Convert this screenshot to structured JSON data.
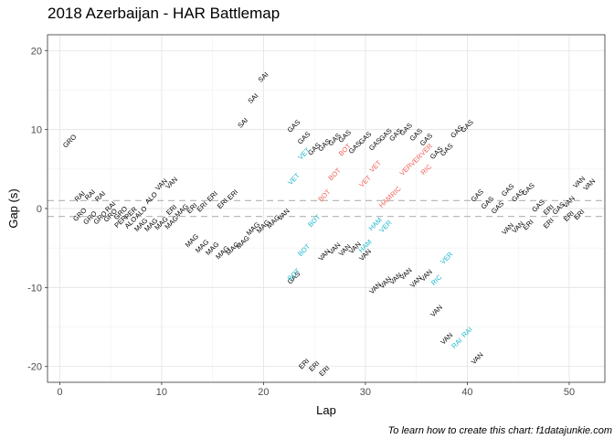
{
  "chart_data": {
    "type": "scatter",
    "title": "2018 Azerbaijan - HAR Battlemap",
    "xlabel": "Lap",
    "ylabel": "Gap (s)",
    "caption": "To learn how to create this chart: f1datajunkie.com",
    "xlim": [
      -1.2,
      53.5
    ],
    "ylim": [
      -22,
      22
    ],
    "x_ticks": [
      0,
      10,
      20,
      30,
      40,
      50
    ],
    "y_ticks": [
      -20,
      -10,
      0,
      10,
      20
    ],
    "reference_lines": [
      1,
      -1
    ],
    "grid": true,
    "label_rotation_deg": -45,
    "colors": {
      "default": "#000000",
      "cyan": "#1db8cc",
      "red": "#f16159"
    },
    "points": [
      {
        "x": 1,
        "y": 8.5,
        "label": "GRO",
        "color": "default"
      },
      {
        "x": 2,
        "y": 1.5,
        "label": "RAI",
        "color": "default"
      },
      {
        "x": 3,
        "y": 1.7,
        "label": "RAI",
        "color": "default"
      },
      {
        "x": 4,
        "y": 1.5,
        "label": "RAI",
        "color": "default"
      },
      {
        "x": 2,
        "y": -0.8,
        "label": "GRO",
        "color": "default"
      },
      {
        "x": 3,
        "y": -1.2,
        "label": "GRO",
        "color": "default"
      },
      {
        "x": 4,
        "y": -1.2,
        "label": "GRO",
        "color": "default"
      },
      {
        "x": 5,
        "y": 0.2,
        "label": "RAI",
        "color": "default"
      },
      {
        "x": 5,
        "y": -0.9,
        "label": "GRO",
        "color": "default"
      },
      {
        "x": 6,
        "y": -0.6,
        "label": "GRO",
        "color": "default"
      },
      {
        "x": 6,
        "y": -1.7,
        "label": "PER",
        "color": "default"
      },
      {
        "x": 7,
        "y": -0.6,
        "label": "PER",
        "color": "default"
      },
      {
        "x": 7,
        "y": -1.8,
        "label": "ALO",
        "color": "default"
      },
      {
        "x": 8,
        "y": -0.5,
        "label": "ALO",
        "color": "default"
      },
      {
        "x": 9,
        "y": 1.3,
        "label": "ALO",
        "color": "default"
      },
      {
        "x": 10,
        "y": 3.0,
        "label": "VAN",
        "color": "default"
      },
      {
        "x": 11,
        "y": 3.2,
        "label": "VAN",
        "color": "default"
      },
      {
        "x": 8,
        "y": -2.1,
        "label": "MAG",
        "color": "default"
      },
      {
        "x": 9,
        "y": -2.1,
        "label": "MAG",
        "color": "default"
      },
      {
        "x": 10,
        "y": -1.9,
        "label": "MAG",
        "color": "default"
      },
      {
        "x": 11,
        "y": -1.8,
        "label": "MAG",
        "color": "default"
      },
      {
        "x": 11,
        "y": -0.2,
        "label": "ERI",
        "color": "default"
      },
      {
        "x": 12,
        "y": -0.3,
        "label": "MAG",
        "color": "default"
      },
      {
        "x": 13,
        "y": 0.0,
        "label": "ERI",
        "color": "default"
      },
      {
        "x": 14,
        "y": 0.2,
        "label": "ERI",
        "color": "default"
      },
      {
        "x": 15,
        "y": 1.5,
        "label": "ERI",
        "color": "default"
      },
      {
        "x": 16,
        "y": 0.6,
        "label": "ERI",
        "color": "default"
      },
      {
        "x": 17,
        "y": 1.7,
        "label": "ERI",
        "color": "default"
      },
      {
        "x": 13,
        "y": -4.1,
        "label": "MAG",
        "color": "default"
      },
      {
        "x": 14,
        "y": -4.8,
        "label": "MAG",
        "color": "default"
      },
      {
        "x": 15,
        "y": -5.1,
        "label": "MAG",
        "color": "default"
      },
      {
        "x": 16,
        "y": -5.6,
        "label": "MAG",
        "color": "default"
      },
      {
        "x": 17,
        "y": -5.1,
        "label": "MAG",
        "color": "default"
      },
      {
        "x": 18,
        "y": -4.3,
        "label": "MAG",
        "color": "default"
      },
      {
        "x": 19,
        "y": -2.6,
        "label": "MAG",
        "color": "default"
      },
      {
        "x": 20,
        "y": -2.3,
        "label": "MAG",
        "color": "default"
      },
      {
        "x": 21,
        "y": -1.7,
        "label": "MAG",
        "color": "default"
      },
      {
        "x": 22,
        "y": -0.8,
        "label": "VAN",
        "color": "default"
      },
      {
        "x": 18,
        "y": 10.8,
        "label": "SAI",
        "color": "default"
      },
      {
        "x": 19,
        "y": 13.9,
        "label": "SAI",
        "color": "default"
      },
      {
        "x": 20,
        "y": 16.6,
        "label": "SAI",
        "color": "default"
      },
      {
        "x": 23,
        "y": 10.4,
        "label": "GAS",
        "color": "default"
      },
      {
        "x": 24,
        "y": 8.9,
        "label": "GAS",
        "color": "default"
      },
      {
        "x": 25,
        "y": 7.5,
        "label": "GAS",
        "color": "default"
      },
      {
        "x": 26,
        "y": 8.0,
        "label": "GAS",
        "color": "default"
      },
      {
        "x": 27,
        "y": 8.7,
        "label": "GAS",
        "color": "default"
      },
      {
        "x": 28,
        "y": 9.1,
        "label": "GAS",
        "color": "default"
      },
      {
        "x": 29,
        "y": 7.7,
        "label": "GAS",
        "color": "default"
      },
      {
        "x": 30,
        "y": 8.9,
        "label": "GAS",
        "color": "default"
      },
      {
        "x": 31,
        "y": 8.1,
        "label": "GAS",
        "color": "default"
      },
      {
        "x": 32,
        "y": 9.3,
        "label": "GAS",
        "color": "default"
      },
      {
        "x": 33,
        "y": 9.3,
        "label": "GAS",
        "color": "default"
      },
      {
        "x": 34,
        "y": 10.0,
        "label": "GAS",
        "color": "default"
      },
      {
        "x": 35,
        "y": 9.3,
        "label": "GAS",
        "color": "default"
      },
      {
        "x": 36,
        "y": 8.7,
        "label": "GAS",
        "color": "default"
      },
      {
        "x": 37,
        "y": 7.0,
        "label": "GAS",
        "color": "default"
      },
      {
        "x": 38,
        "y": 7.4,
        "label": "GAS",
        "color": "default"
      },
      {
        "x": 39,
        "y": 9.7,
        "label": "GAS",
        "color": "default"
      },
      {
        "x": 40,
        "y": 10.4,
        "label": "GAS",
        "color": "default"
      },
      {
        "x": 23,
        "y": -8.8,
        "label": "GAS",
        "color": "default"
      },
      {
        "x": 24,
        "y": 6.9,
        "label": "VET",
        "color": "cyan"
      },
      {
        "x": 23,
        "y": 3.7,
        "label": "VET",
        "color": "cyan"
      },
      {
        "x": 28,
        "y": 7.4,
        "label": "BOT",
        "color": "red"
      },
      {
        "x": 27,
        "y": 4.3,
        "label": "BOT",
        "color": "red"
      },
      {
        "x": 26,
        "y": 1.6,
        "label": "BOT",
        "color": "red"
      },
      {
        "x": 31,
        "y": 5.3,
        "label": "VET",
        "color": "red"
      },
      {
        "x": 30,
        "y": 3.4,
        "label": "VET",
        "color": "red"
      },
      {
        "x": 34,
        "y": 4.9,
        "label": "VER",
        "color": "red"
      },
      {
        "x": 35,
        "y": 6.1,
        "label": "VER",
        "color": "red"
      },
      {
        "x": 36,
        "y": 7.4,
        "label": "VER",
        "color": "red"
      },
      {
        "x": 36,
        "y": 4.9,
        "label": "RIC",
        "color": "red"
      },
      {
        "x": 33,
        "y": 2.1,
        "label": "RIC",
        "color": "red"
      },
      {
        "x": 32,
        "y": 0.9,
        "label": "HAM",
        "color": "red"
      },
      {
        "x": 25,
        "y": -1.6,
        "label": "BOT",
        "color": "cyan"
      },
      {
        "x": 24,
        "y": -5.3,
        "label": "BOT",
        "color": "cyan"
      },
      {
        "x": 23,
        "y": -8.4,
        "label": "BOT",
        "color": "cyan"
      },
      {
        "x": 31,
        "y": -2.0,
        "label": "HAM",
        "color": "cyan"
      },
      {
        "x": 32,
        "y": -2.3,
        "label": "VER",
        "color": "cyan"
      },
      {
        "x": 30,
        "y": -4.8,
        "label": "HAM",
        "color": "cyan"
      },
      {
        "x": 38,
        "y": -6.3,
        "label": "VER",
        "color": "cyan"
      },
      {
        "x": 37,
        "y": -9.1,
        "label": "RIC",
        "color": "cyan"
      },
      {
        "x": 39,
        "y": -17.1,
        "label": "RAI",
        "color": "cyan"
      },
      {
        "x": 40,
        "y": -15.7,
        "label": "RAI",
        "color": "cyan"
      },
      {
        "x": 26,
        "y": -5.9,
        "label": "VAN",
        "color": "default"
      },
      {
        "x": 27,
        "y": -5.1,
        "label": "VAN",
        "color": "default"
      },
      {
        "x": 28,
        "y": -5.3,
        "label": "VAN",
        "color": "default"
      },
      {
        "x": 29,
        "y": -5.0,
        "label": "VAN",
        "color": "default"
      },
      {
        "x": 30,
        "y": -5.9,
        "label": "VAN",
        "color": "default"
      },
      {
        "x": 31,
        "y": -10.1,
        "label": "VAN",
        "color": "default"
      },
      {
        "x": 32,
        "y": -9.4,
        "label": "VAN",
        "color": "default"
      },
      {
        "x": 33,
        "y": -8.9,
        "label": "VAN",
        "color": "default"
      },
      {
        "x": 34,
        "y": -8.3,
        "label": "VAN",
        "color": "default"
      },
      {
        "x": 35,
        "y": -9.3,
        "label": "VAN",
        "color": "default"
      },
      {
        "x": 36,
        "y": -8.5,
        "label": "VAN",
        "color": "default"
      },
      {
        "x": 37,
        "y": -13.0,
        "label": "VAN",
        "color": "default"
      },
      {
        "x": 38,
        "y": -16.5,
        "label": "VAN",
        "color": "default"
      },
      {
        "x": 41,
        "y": -19.0,
        "label": "VAN",
        "color": "default"
      },
      {
        "x": 24,
        "y": -19.7,
        "label": "ERI",
        "color": "default"
      },
      {
        "x": 25,
        "y": -20.0,
        "label": "ERI",
        "color": "default"
      },
      {
        "x": 26,
        "y": -20.6,
        "label": "ERI",
        "color": "default"
      },
      {
        "x": 41,
        "y": 1.6,
        "label": "GAS",
        "color": "default"
      },
      {
        "x": 42,
        "y": 0.7,
        "label": "GAS",
        "color": "default"
      },
      {
        "x": 43,
        "y": 0.1,
        "label": "GAS",
        "color": "default"
      },
      {
        "x": 44,
        "y": 2.3,
        "label": "GAS",
        "color": "default"
      },
      {
        "x": 45,
        "y": 1.6,
        "label": "GAS",
        "color": "default"
      },
      {
        "x": 46,
        "y": 2.4,
        "label": "GAS",
        "color": "default"
      },
      {
        "x": 44,
        "y": -2.6,
        "label": "VAN",
        "color": "default"
      },
      {
        "x": 45,
        "y": -2.4,
        "label": "VAN",
        "color": "default"
      },
      {
        "x": 46,
        "y": -2.1,
        "label": "ERI",
        "color": "default"
      },
      {
        "x": 47,
        "y": 0.3,
        "label": "GAS",
        "color": "default"
      },
      {
        "x": 48,
        "y": -1.9,
        "label": "ERI",
        "color": "default"
      },
      {
        "x": 48,
        "y": -0.2,
        "label": "ERI",
        "color": "default"
      },
      {
        "x": 49,
        "y": 0.0,
        "label": "GAS",
        "color": "default"
      },
      {
        "x": 50,
        "y": 0.8,
        "label": "VAN",
        "color": "default"
      },
      {
        "x": 51,
        "y": 3.3,
        "label": "VAN",
        "color": "default"
      },
      {
        "x": 50,
        "y": -1.0,
        "label": "ERI",
        "color": "default"
      },
      {
        "x": 51,
        "y": -0.8,
        "label": "ERI",
        "color": "default"
      },
      {
        "x": 52,
        "y": 3.0,
        "label": "VAN",
        "color": "default"
      }
    ]
  }
}
